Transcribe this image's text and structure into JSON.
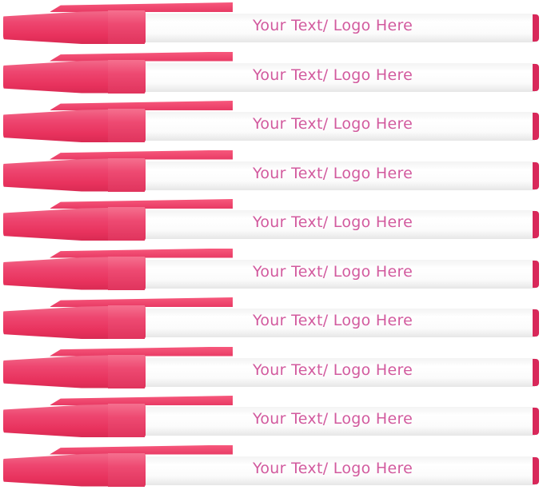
{
  "product": {
    "cap_color": "#ee4670",
    "barrel_color": "#ffffff",
    "imprint_color": "#d25a9e",
    "pens": [
      {
        "imprint": "Your Text/ Logo Here"
      },
      {
        "imprint": "Your Text/ Logo Here"
      },
      {
        "imprint": "Your Text/ Logo Here"
      },
      {
        "imprint": "Your Text/ Logo Here"
      },
      {
        "imprint": "Your Text/ Logo Here"
      },
      {
        "imprint": "Your Text/ Logo Here"
      },
      {
        "imprint": "Your Text/ Logo Here"
      },
      {
        "imprint": "Your Text/ Logo Here"
      },
      {
        "imprint": "Your Text/ Logo Here"
      },
      {
        "imprint": "Your Text/ Logo Here"
      }
    ]
  }
}
